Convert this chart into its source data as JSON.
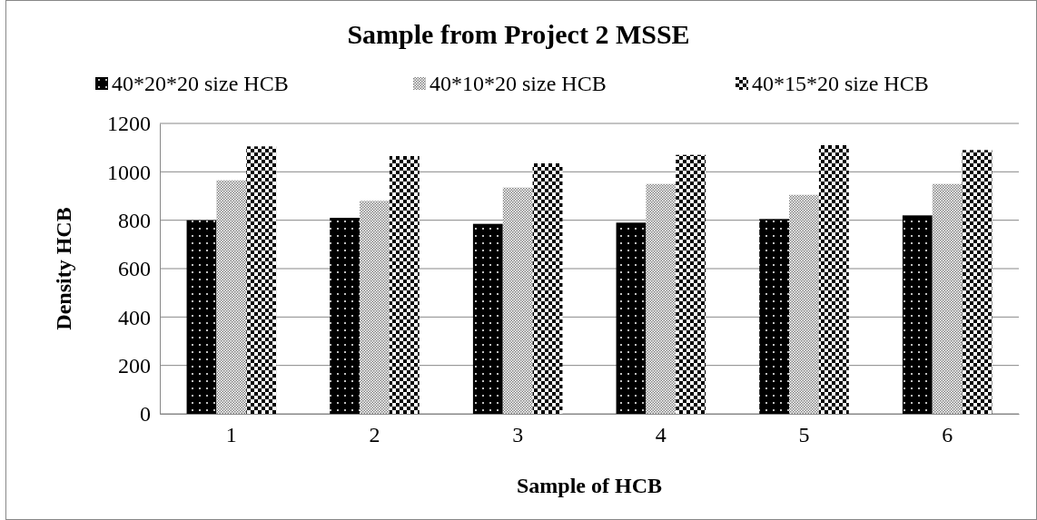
{
  "chart_data": {
    "type": "bar",
    "title": "Sample from Project  2 MSSE",
    "xlabel": "Sample of HCB",
    "ylabel": "Density  HCB",
    "categories": [
      "1",
      "2",
      "3",
      "4",
      "5",
      "6"
    ],
    "series": [
      {
        "name": "40*20*20 size HCB",
        "color": "#000000",
        "values": [
          800,
          810,
          785,
          790,
          805,
          820
        ]
      },
      {
        "name": "40*10*20 size HCB",
        "color": "#808080",
        "values": [
          965,
          880,
          935,
          950,
          905,
          950
        ]
      },
      {
        "name": "40*15*20 size HCB",
        "color": "#000000",
        "values": [
          1105,
          1065,
          1035,
          1070,
          1110,
          1090
        ]
      }
    ],
    "ylim": [
      0,
      1200
    ],
    "yticks": [
      0,
      200,
      400,
      600,
      800,
      1000,
      1200
    ],
    "grid": "y",
    "legend": "top"
  }
}
